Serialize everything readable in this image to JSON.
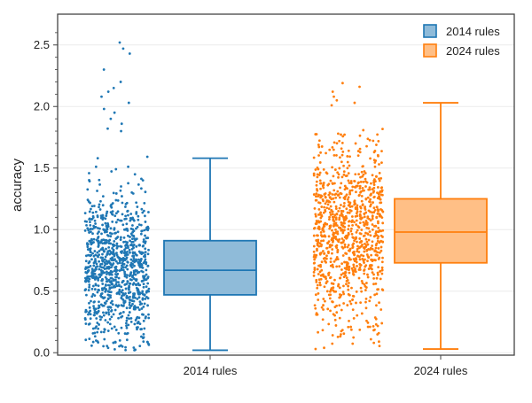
{
  "chart_data": {
    "type": "box",
    "title": "",
    "xlabel": "",
    "ylabel": "accuracy",
    "ylim": [
      -0.02,
      2.75
    ],
    "yticks": [
      "0.0",
      "0.5",
      "1.0",
      "1.5",
      "2.0",
      "2.5"
    ],
    "grid": "horizontal",
    "legend_position": "top-right",
    "categories": [
      "2014 rules",
      "2024 rules"
    ],
    "series": [
      {
        "name": "2014 rules",
        "color": "#1f77b4",
        "fill": "#8fbbd9",
        "min": 0.02,
        "q1": 0.47,
        "median": 0.67,
        "q3": 0.91,
        "max": 1.58,
        "points": {
          "count": 1000,
          "center": 0.68,
          "spread": 0.3,
          "min": 0.02,
          "max": 2.52,
          "outliers": [
            2.52,
            2.47,
            2.43,
            2.3,
            2.2,
            2.15,
            2.12,
            2.08,
            2.03,
            1.98,
            1.95,
            1.9,
            1.86,
            1.82,
            1.8
          ]
        }
      },
      {
        "name": "2024 rules",
        "color": "#ff7f0e",
        "fill": "#ffbf86",
        "min": 0.03,
        "q1": 0.73,
        "median": 0.98,
        "q3": 1.25,
        "max": 2.03,
        "points": {
          "count": 1000,
          "center": 0.98,
          "spread": 0.38,
          "min": 0.03,
          "max": 2.19,
          "outliers": [
            2.19,
            2.16,
            2.12,
            2.08,
            2.05,
            2.03,
            2.01
          ]
        }
      }
    ]
  }
}
